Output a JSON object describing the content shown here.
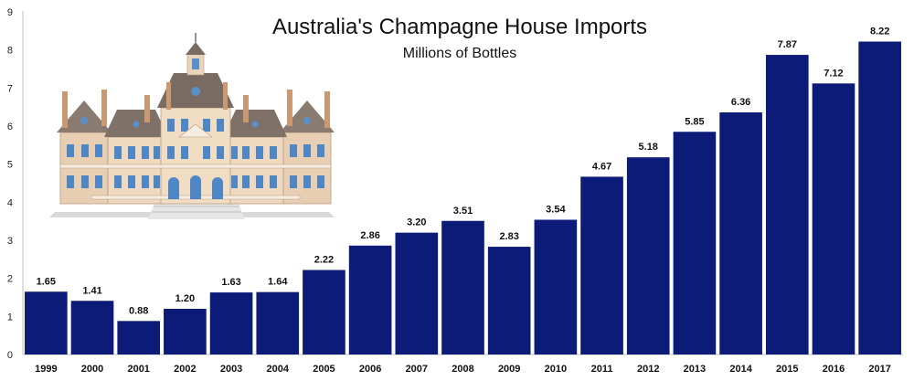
{
  "chart_data": {
    "type": "bar",
    "title": "Australia's Champagne House Imports",
    "subtitle": "Millions of Bottles",
    "categories": [
      "1999",
      "2000",
      "2001",
      "2002",
      "2003",
      "2004",
      "2005",
      "2006",
      "2007",
      "2008",
      "2009",
      "2010",
      "2011",
      "2012",
      "2013",
      "2014",
      "2015",
      "2016",
      "2017"
    ],
    "values": [
      1.65,
      1.41,
      0.88,
      1.2,
      1.63,
      1.64,
      2.22,
      2.86,
      3.2,
      3.51,
      2.83,
      3.54,
      4.67,
      5.18,
      5.85,
      6.36,
      7.87,
      7.12,
      8.22
    ],
    "value_labels": [
      "1.65",
      "1.41",
      "0.88",
      "1.20",
      "1.63",
      "1.64",
      "2.22",
      "2.86",
      "3.20",
      "3.51",
      "2.83",
      "3.54",
      "4.67",
      "5.18",
      "5.85",
      "6.36",
      "7.87",
      "7.12",
      "8.22"
    ],
    "y_ticks": [
      "0",
      "1",
      "2",
      "3",
      "4",
      "5",
      "6",
      "7",
      "8",
      "9"
    ],
    "ylim": [
      0,
      9
    ],
    "xlabel": "",
    "ylabel": "",
    "grid": false,
    "bar_color": "#0c1a78",
    "illustration": "chateau-illustration"
  }
}
